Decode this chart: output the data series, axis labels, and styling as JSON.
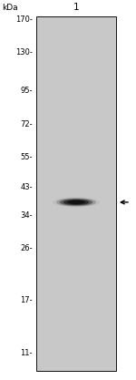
{
  "fig_width": 1.5,
  "fig_height": 4.17,
  "dpi": 100,
  "background_color": "#ffffff",
  "gel_bg_color": "#c8c8c8",
  "gel_border_color": "#111111",
  "lane_label": "1",
  "kda_label": "kDa",
  "markers": [
    {
      "label": "170-",
      "kda": 170
    },
    {
      "label": "130-",
      "kda": 130
    },
    {
      "label": "95-",
      "kda": 95
    },
    {
      "label": "72-",
      "kda": 72
    },
    {
      "label": "55-",
      "kda": 55
    },
    {
      "label": "43-",
      "kda": 43
    },
    {
      "label": "34-",
      "kda": 34
    },
    {
      "label": "26-",
      "kda": 26
    },
    {
      "label": "17-",
      "kda": 17
    },
    {
      "label": "11-",
      "kda": 11
    }
  ],
  "band_kda": 38,
  "arrow_kda": 38,
  "label_fontsize": 6.0,
  "lane_label_fontsize": 7.5,
  "kda_label_fontsize": 6.5
}
